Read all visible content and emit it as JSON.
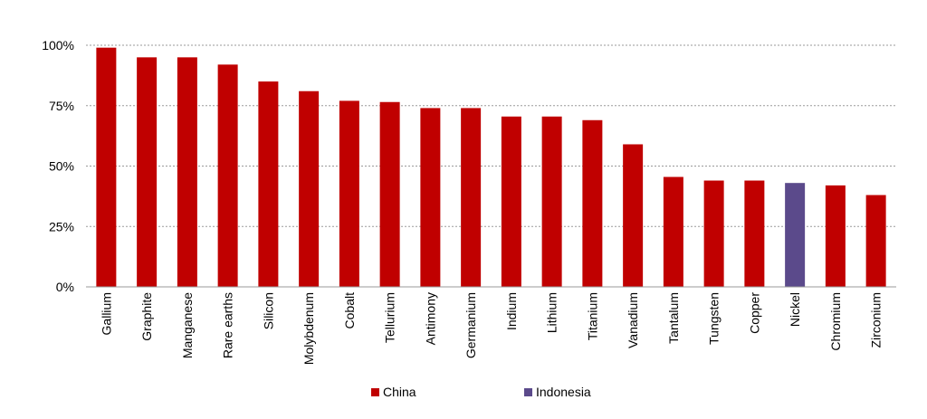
{
  "chart_data": {
    "type": "bar",
    "categories": [
      "Gallium",
      "Graphite",
      "Manganese",
      "Rare earths",
      "Silicon",
      "Molybdenum",
      "Cobalt",
      "Tellurium",
      "Antimony",
      "Germanium",
      "Indium",
      "Lithium",
      "Titanium",
      "Vanadium",
      "Tantalum",
      "Tungsten",
      "Copper",
      "Nickel",
      "Chromium",
      "Zirconium"
    ],
    "values": [
      99,
      95,
      95,
      92,
      85,
      81,
      77,
      76.5,
      74,
      74,
      70.5,
      70.5,
      69,
      59,
      45.5,
      44,
      44,
      43,
      42,
      38
    ],
    "series_index": [
      0,
      0,
      0,
      0,
      0,
      0,
      0,
      0,
      0,
      0,
      0,
      0,
      0,
      0,
      0,
      0,
      0,
      1,
      0,
      0
    ],
    "legend": [
      {
        "name": "China",
        "color": "#c00000"
      },
      {
        "name": "Indonesia",
        "color": "#5b4a8b"
      }
    ],
    "y_ticks": [
      "0%",
      "25%",
      "50%",
      "75%",
      "100%"
    ],
    "ylim": [
      0,
      100
    ],
    "grid": true,
    "legend_position": "bottom",
    "title": "",
    "xlabel": "",
    "ylabel": ""
  }
}
